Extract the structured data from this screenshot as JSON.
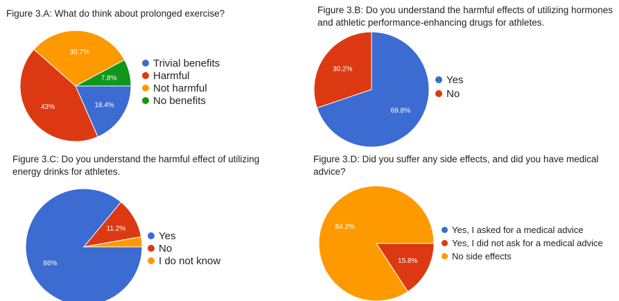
{
  "chart_data": [
    {
      "type": "pie",
      "title": "Figure 3.A: What do think about prolonged exercise?",
      "labels": [
        "Trivial benefits",
        "Harmful",
        "Not harmful",
        "No benefits"
      ],
      "values": [
        18.4,
        43,
        30.7,
        7.8
      ],
      "value_labels": [
        "18.4%",
        "43%",
        "30.7%",
        "7.8%"
      ],
      "colors": [
        "#3c6bd2",
        "#dc3912",
        "#ff9900",
        "#109618"
      ],
      "legend": "right"
    },
    {
      "type": "pie",
      "title": "Figure 3.B: Do you understand the harmful effects of utilizing hormones and athletic performance-enhancing drugs for athletes.",
      "labels": [
        "Yes",
        "No"
      ],
      "values": [
        69.8,
        30.2
      ],
      "value_labels": [
        "69.8%",
        "30.2%"
      ],
      "colors": [
        "#3c6bd2",
        "#dc3912"
      ],
      "legend": "right"
    },
    {
      "type": "pie",
      "title": "Figure 3.C: Do you understand the harmful effect of utilizing energy drinks for athletes.",
      "labels": [
        "Yes",
        "No",
        "I do not know"
      ],
      "values": [
        86,
        11.2,
        2.8
      ],
      "value_labels": [
        "86%",
        "11.2%",
        ""
      ],
      "colors": [
        "#3c6bd2",
        "#dc3912",
        "#ff9900"
      ],
      "legend": "right"
    },
    {
      "type": "pie",
      "title": "Figure 3.D: Did you suffer any side effects, and did you have medical advice?",
      "labels": [
        "Yes, I asked for a medical advice",
        "Yes, I did not ask for a medical advice",
        "No side effects"
      ],
      "values": [
        0,
        15.8,
        84.2
      ],
      "value_labels": [
        "",
        "15.8%",
        "84.2%"
      ],
      "colors": [
        "#3c6bd2",
        "#dc3912",
        "#ff9900"
      ],
      "legend": "right"
    }
  ]
}
